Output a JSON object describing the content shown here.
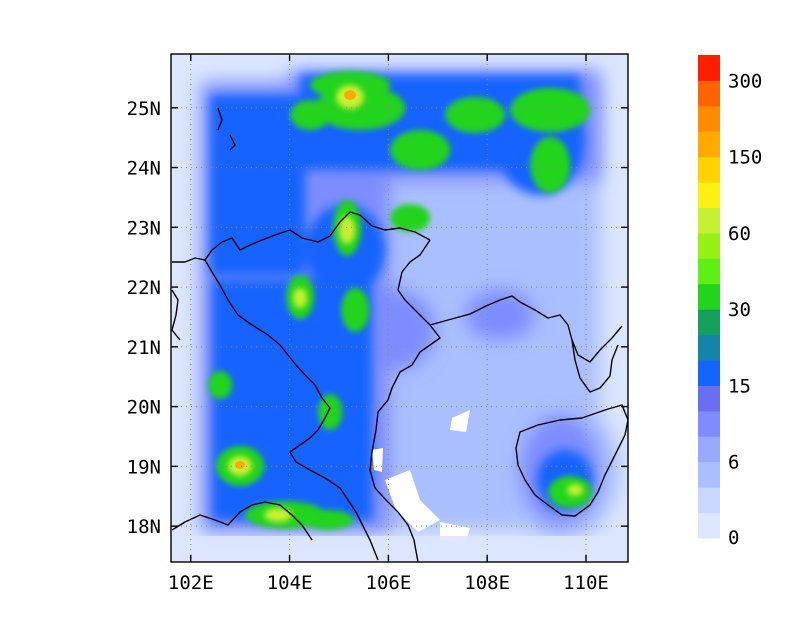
{
  "map": {
    "lon_range": [
      101.6,
      110.85
    ],
    "lat_range": [
      17.4,
      25.9
    ],
    "x_ticks": [
      {
        "value": 102,
        "label": "102E"
      },
      {
        "value": 104,
        "label": "104E"
      },
      {
        "value": 106,
        "label": "106E"
      },
      {
        "value": 108,
        "label": "108E"
      },
      {
        "value": 110,
        "label": "110E"
      }
    ],
    "y_ticks": [
      {
        "value": 18,
        "label": "18N"
      },
      {
        "value": 19,
        "label": "19N"
      },
      {
        "value": 20,
        "label": "20N"
      },
      {
        "value": 21,
        "label": "21N"
      },
      {
        "value": 22,
        "label": "22N"
      },
      {
        "value": 23,
        "label": "23N"
      },
      {
        "value": 24,
        "label": "24N"
      },
      {
        "value": 25,
        "label": "25N"
      }
    ],
    "grid_lines": "dotted",
    "data_extent": {
      "lon": [
        102.3,
        110.2
      ],
      "lat": [
        18.0,
        25.8
      ]
    }
  },
  "colorbar": {
    "labels": [
      "0",
      "6",
      "15",
      "30",
      "60",
      "150",
      "300"
    ],
    "colors": [
      "#dce6ff",
      "#c8d7ff",
      "#aabfff",
      "#96aaff",
      "#7d8cff",
      "#6a6ef0",
      "#1464ff",
      "#1484a8",
      "#14a05a",
      "#22d41e",
      "#5ef014",
      "#96f014",
      "#c8f032",
      "#fff014",
      "#ffd200",
      "#ffaa00",
      "#ff8c00",
      "#ff6400",
      "#ff1e00"
    ]
  },
  "chart_data": {
    "type": "heatmap",
    "title": "",
    "xlabel": "",
    "ylabel": "",
    "x_range": [
      101.6,
      110.85
    ],
    "y_range": [
      17.4,
      25.9
    ],
    "legend": "colorbar at right",
    "levels_labeled": [
      0,
      6,
      15,
      30,
      60,
      150,
      300
    ],
    "hotspots": [
      {
        "lon": 105.3,
        "lat": 25.25,
        "value": 90,
        "note": "max"
      },
      {
        "lon": 105.0,
        "lat": 25.6,
        "value": 40
      },
      {
        "lon": 104.2,
        "lat": 25.1,
        "value": 40
      },
      {
        "lon": 106.4,
        "lat": 25.1,
        "value": 40
      },
      {
        "lon": 108.2,
        "lat": 24.9,
        "value": 35
      },
      {
        "lon": 109.2,
        "lat": 25.0,
        "value": 40
      },
      {
        "lon": 106.8,
        "lat": 24.2,
        "value": 35
      },
      {
        "lon": 109.2,
        "lat": 24.1,
        "value": 35
      },
      {
        "lon": 105.0,
        "lat": 22.95,
        "value": 70
      },
      {
        "lon": 106.4,
        "lat": 22.95,
        "value": 35
      },
      {
        "lon": 103.9,
        "lat": 22.0,
        "value": 50
      },
      {
        "lon": 105.0,
        "lat": 21.6,
        "value": 50
      },
      {
        "lon": 104.9,
        "lat": 22.6,
        "value": 35
      },
      {
        "lon": 103.1,
        "lat": 19.05,
        "value": 90
      },
      {
        "lon": 103.8,
        "lat": 18.2,
        "value": 70
      },
      {
        "lon": 104.5,
        "lat": 18.4,
        "value": 40
      },
      {
        "lon": 102.8,
        "lat": 20.5,
        "value": 30
      },
      {
        "lon": 104.7,
        "lat": 19.2,
        "value": 30
      },
      {
        "lon": 109.6,
        "lat": 18.5,
        "value": 50
      },
      {
        "lon": 108.8,
        "lat": 21.8,
        "value": 15
      }
    ]
  }
}
